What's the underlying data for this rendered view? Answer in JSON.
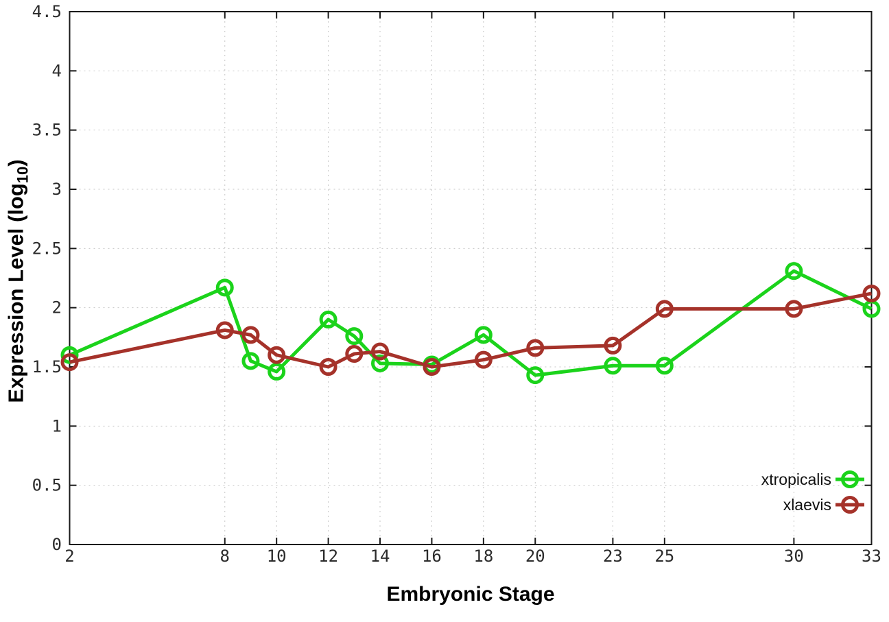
{
  "chart_data": {
    "type": "line",
    "title": "",
    "xlabel": "Embryonic Stage",
    "ylabel_prefix": "Expression Level (log",
    "ylabel_sub": "10",
    "ylabel_suffix": ")",
    "xlim": [
      2,
      33
    ],
    "ylim": [
      0,
      4.5
    ],
    "grid": true,
    "legend_position": "bottom-right-inside",
    "xticks": [
      2,
      8,
      10,
      12,
      14,
      16,
      18,
      20,
      23,
      25,
      30,
      33
    ],
    "yticks": [
      "0",
      "0.5",
      "1",
      "1.5",
      "2",
      "2.5",
      "3",
      "3.5",
      "4",
      "4.5"
    ],
    "x": [
      2,
      8,
      9,
      10,
      12,
      13,
      14,
      16,
      18,
      20,
      23,
      25,
      30,
      33
    ],
    "series": [
      {
        "name": "xtropicalis",
        "color": "#1bd31b",
        "values": [
          1.6,
          2.17,
          1.55,
          1.46,
          1.9,
          1.76,
          1.53,
          1.52,
          1.77,
          1.43,
          1.51,
          1.51,
          2.31,
          1.99
        ]
      },
      {
        "name": "xlaevis",
        "color": "#a5322a",
        "values": [
          1.54,
          1.81,
          1.77,
          1.6,
          1.5,
          1.61,
          1.63,
          1.5,
          1.56,
          1.66,
          1.68,
          1.99,
          1.99,
          2.12
        ]
      }
    ],
    "style": {
      "grid_color": "#c6c6c6",
      "axis_color": "#1a1a1a",
      "tick_label_color": "#2b2b2b",
      "marker": "open-circle"
    }
  }
}
